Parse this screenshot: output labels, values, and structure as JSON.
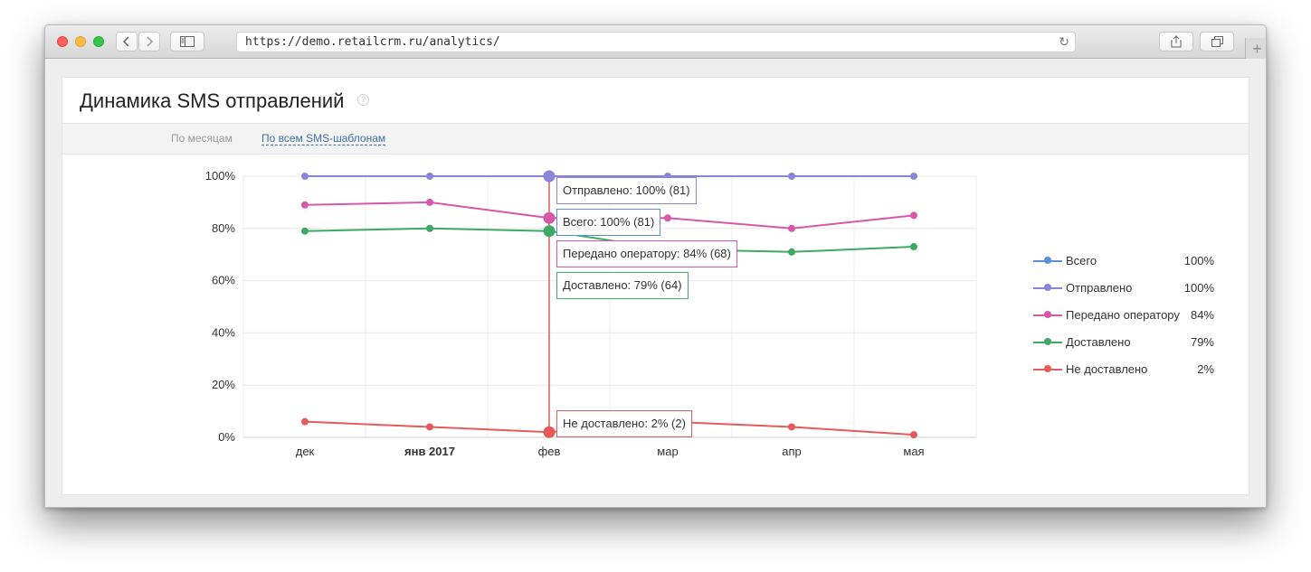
{
  "browser": {
    "url": "https://demo.retailcrm.ru/analytics/"
  },
  "page": {
    "title": "Динамика SMS отправлений",
    "help_glyph": "?"
  },
  "tabs": [
    {
      "label": "По месяцам",
      "active": false
    },
    {
      "label": "По всем SMS-шаблонам",
      "active": true
    }
  ],
  "colors": {
    "Всего": "#5b8fd6",
    "Отправлено": "#8b84db",
    "Передано оператору": "#d757a8",
    "Доставлено": "#3da964",
    "Не доставлено": "#e65a5a"
  },
  "chart_data": {
    "type": "line",
    "categories": [
      "дек",
      "янв 2017",
      "фев",
      "мар",
      "апр",
      "мая"
    ],
    "bold_categories": [
      "янв 2017"
    ],
    "ylim": [
      0,
      100
    ],
    "yticks": [
      "100%",
      "80%",
      "60%",
      "40%",
      "20%",
      "0%"
    ],
    "ytick_values": [
      100,
      80,
      60,
      40,
      20,
      0
    ],
    "series": [
      {
        "name": "Отправлено",
        "values": [
          100,
          100,
          100,
          100,
          100,
          100
        ]
      },
      {
        "name": "Передано оператору",
        "values": [
          89,
          90,
          84,
          84,
          80,
          85
        ]
      },
      {
        "name": "Доставлено",
        "values": [
          79,
          80,
          79,
          72,
          71,
          73
        ]
      },
      {
        "name": "Не доставлено",
        "values": [
          6,
          4,
          2,
          6,
          4,
          1
        ]
      }
    ],
    "hover_category": "фев",
    "tooltips": [
      {
        "series": "Отправлено",
        "text": "Отправлено: 100% (81)"
      },
      {
        "series": "Всего",
        "text": "Всего: 100% (81)"
      },
      {
        "series": "Передано оператору",
        "text": "Передано оператору: 84% (68)"
      },
      {
        "series": "Доставлено",
        "text": "Доставлено: 79% (64)"
      },
      {
        "series": "Не доставлено",
        "text": "Не доставлено: 2% (2)"
      }
    ],
    "grid": true,
    "legend_position": "right"
  },
  "legend": [
    {
      "name": "Всего",
      "value": "100%"
    },
    {
      "name": "Отправлено",
      "value": "100%"
    },
    {
      "name": "Передано оператору",
      "value": "84%"
    },
    {
      "name": "Доставлено",
      "value": "79%"
    },
    {
      "name": "Не доставлено",
      "value": "2%"
    }
  ]
}
